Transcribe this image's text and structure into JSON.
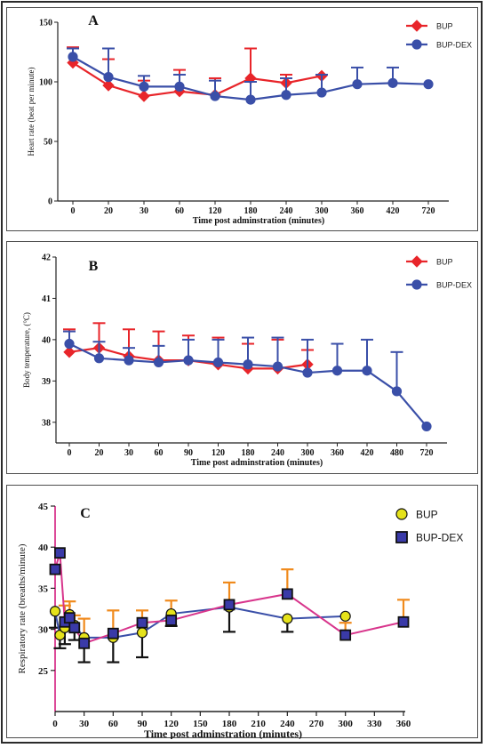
{
  "chart_data": [
    {
      "type": "line",
      "panel_label": "A",
      "xlabel": "Time post adminstration (minutes)",
      "ylabel": "Heart rate (beat per minute)",
      "ylim": [
        0,
        150
      ],
      "yticks": [
        "0",
        "50",
        "100",
        "150"
      ],
      "categories": [
        "0",
        "20",
        "30",
        "60",
        "120",
        "180",
        "240",
        "300",
        "360",
        "420",
        "720"
      ],
      "legend_position": "top-right",
      "series": [
        {
          "name": "BUP",
          "color": "#e8252a",
          "marker": "diamond",
          "values": [
            116,
            97,
            88,
            92,
            89,
            103,
            99,
            105,
            null,
            null,
            null
          ],
          "error": [
            13,
            22,
            13,
            18,
            14,
            25,
            7,
            null,
            null,
            null,
            null
          ]
        },
        {
          "name": "BUP-DEX",
          "color": "#3a4fa8",
          "marker": "circle",
          "values": [
            121,
            104,
            96,
            96,
            88,
            85,
            89,
            91,
            98,
            99,
            98
          ],
          "error": [
            7,
            24,
            9,
            10,
            13,
            15,
            14,
            15,
            14,
            13,
            null
          ]
        }
      ]
    },
    {
      "type": "line",
      "panel_label": "B",
      "xlabel": "Time post adminstration (minutes)",
      "ylabel": "Body temperature, (°C)",
      "ylim": [
        37.5,
        42
      ],
      "yticks": [
        "38",
        "39",
        "40",
        "41",
        "42"
      ],
      "categories": [
        "0",
        "20",
        "30",
        "60",
        "90",
        "120",
        "180",
        "240",
        "300",
        "360",
        "420",
        "480",
        "720"
      ],
      "legend_position": "top-right",
      "series": [
        {
          "name": "BUP",
          "color": "#e8252a",
          "marker": "diamond",
          "values": [
            39.7,
            39.8,
            39.6,
            39.5,
            39.5,
            39.4,
            39.3,
            39.3,
            39.4,
            null,
            null,
            null,
            null
          ],
          "error": [
            0.55,
            0.6,
            0.65,
            0.7,
            0.6,
            0.65,
            0.6,
            0.7,
            0.35,
            null,
            null,
            null,
            null
          ]
        },
        {
          "name": "BUP-DEX",
          "color": "#3a4fa8",
          "marker": "circle",
          "values": [
            39.9,
            39.55,
            39.5,
            39.45,
            39.5,
            39.45,
            39.4,
            39.35,
            39.2,
            39.25,
            39.25,
            38.75,
            37.9
          ],
          "error": [
            0.3,
            0.4,
            0.3,
            0.4,
            0.5,
            0.55,
            0.65,
            0.7,
            0.8,
            0.65,
            0.75,
            0.95,
            null
          ]
        }
      ]
    },
    {
      "type": "line",
      "panel_label": "C",
      "xlabel": "Time post adminstration (minutes)",
      "ylabel": "Respiratory rate (breaths/minute)",
      "xlim": [
        0,
        360
      ],
      "xticks": [
        "0",
        "30",
        "60",
        "90",
        "120",
        "150",
        "180",
        "210",
        "240",
        "270",
        "300",
        "330",
        "360"
      ],
      "ylim": [
        20,
        45
      ],
      "yticks": [
        "25",
        "30",
        "35",
        "40",
        "45"
      ],
      "legend_position": "top-right",
      "series": [
        {
          "name": "BUP",
          "color": "#e5e21a",
          "marker": "circle",
          "line_color": "#3a4fa8",
          "err_color": "#111111",
          "x": [
            0,
            5,
            10,
            15,
            20,
            30,
            60,
            90,
            120,
            180,
            240,
            300
          ],
          "values": [
            32.2,
            29.3,
            30.2,
            31.8,
            30.5,
            29.0,
            29.0,
            29.6,
            31.9,
            32.7,
            31.3,
            31.6
          ],
          "error": [
            2.0,
            1.6,
            2.0,
            1.8,
            1.8,
            3.0,
            3.0,
            3.0,
            1.5,
            3.0,
            1.6,
            null
          ]
        },
        {
          "name": "BUP-DEX",
          "color": "#3a3aa8",
          "marker": "square",
          "line_color": "#d8358c",
          "err_color": "#f08a1c",
          "x": [
            0,
            5,
            10,
            15,
            20,
            30,
            60,
            90,
            120,
            180,
            240,
            300,
            360
          ],
          "values": [
            37.3,
            39.3,
            30.9,
            31.4,
            30.2,
            28.3,
            29.5,
            30.8,
            31.1,
            33.0,
            34.3,
            29.3,
            30.9
          ],
          "error": [
            null,
            null,
            2.0,
            2.0,
            1.5,
            3.0,
            2.8,
            1.5,
            2.4,
            2.7,
            3.0,
            1.5,
            2.7
          ]
        }
      ]
    }
  ]
}
